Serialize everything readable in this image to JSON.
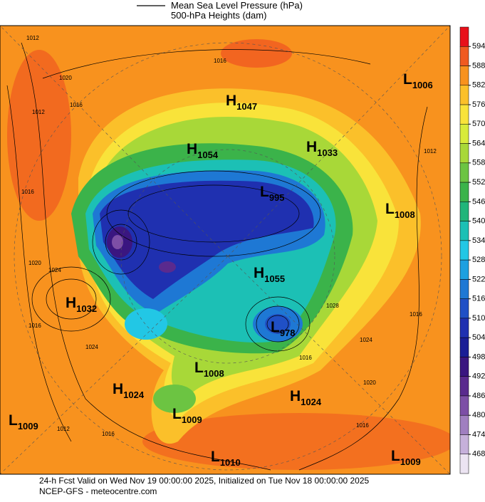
{
  "header": {
    "legend": [
      "Mean Sea Level Pressure (hPa)",
      "500-hPa Heights (dam)"
    ]
  },
  "centers": [
    {
      "type": "H",
      "value": 1047
    },
    {
      "type": "H",
      "value": 1054
    },
    {
      "type": "H",
      "value": 1033
    },
    {
      "type": "L",
      "value": 1006
    },
    {
      "type": "L",
      "value": 1008
    },
    {
      "type": "L",
      "value": 995
    },
    {
      "type": "H",
      "value": 1055
    },
    {
      "type": "L",
      "value": 978
    },
    {
      "type": "H",
      "value": 1032
    },
    {
      "type": "L",
      "value": 1008
    },
    {
      "type": "H",
      "value": 1024
    },
    {
      "type": "H",
      "value": 1024
    },
    {
      "type": "L",
      "value": 1009
    },
    {
      "type": "L",
      "value": 1009
    },
    {
      "type": "L",
      "value": 1010
    },
    {
      "type": "L",
      "value": 1009
    }
  ],
  "contour_labels": [
    1012,
    1016,
    1020,
    1012,
    1016,
    1016,
    1020,
    1024,
    1016,
    1012,
    1024,
    1016,
    1012,
    1016,
    1020,
    1016,
    1024,
    1028,
    1016
  ],
  "colorbar": {
    "ticks": [
      594,
      588,
      582,
      576,
      570,
      564,
      558,
      552,
      546,
      540,
      534,
      528,
      522,
      516,
      510,
      504,
      498,
      492,
      486,
      480,
      474,
      468
    ],
    "colors": [
      "#e8101a",
      "#f05a20",
      "#f8921e",
      "#fbc02a",
      "#f9e33a",
      "#d8eb3a",
      "#a8d838",
      "#6cc442",
      "#3bb34a",
      "#21b57a",
      "#1cc0b5",
      "#22c7e5",
      "#1ea0e0",
      "#1e78d4",
      "#2050c6",
      "#1f30b0",
      "#1a1e96",
      "#3a1680",
      "#5a2a8e",
      "#7d4fa6",
      "#a07fc0",
      "#c6b0da",
      "#ece4f2"
    ]
  },
  "footer": [
    "24-h Fcst Valid on Wed Nov 19 00:00:00 2025, Initialized on Tue Nov 18 00:00:00 2025",
    "NCEP-GFS - meteocentre.com"
  ]
}
